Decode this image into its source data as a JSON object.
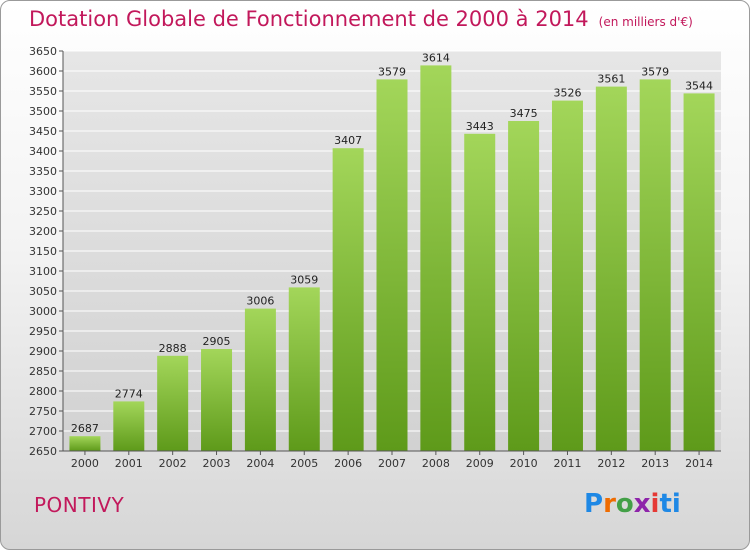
{
  "title": "Dotation Globale de Fonctionnement de 2000 à 2014",
  "subtitle": "(en milliers d'€)",
  "commune": "PONTIVY",
  "logo": "Proxiti",
  "colors": {
    "title": "#c2185b",
    "bar_light": "#a3d65a",
    "bar_dark": "#5e9a1a",
    "grid": "#ffffff"
  },
  "chart_data": {
    "type": "bar",
    "title": "Dotation Globale de Fonctionnement de 2000 à 2014",
    "subtitle": "(en milliers d'€)",
    "categories": [
      "2000",
      "2001",
      "2002",
      "2003",
      "2004",
      "2005",
      "2006",
      "2007",
      "2008",
      "2009",
      "2010",
      "2011",
      "2012",
      "2013",
      "2014"
    ],
    "values": [
      2687,
      2774,
      2888,
      2905,
      3006,
      3059,
      3407,
      3579,
      3614,
      3443,
      3475,
      3526,
      3561,
      3579,
      3544
    ],
    "xlabel": "",
    "ylabel": "",
    "ylim": [
      2650,
      3650
    ],
    "ytick_step": 50,
    "grid": true,
    "data_labels": true
  }
}
